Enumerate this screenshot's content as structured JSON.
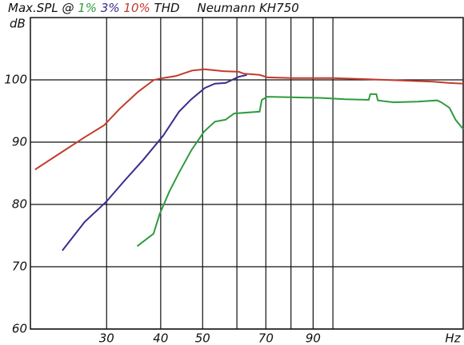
{
  "chart_data": {
    "type": "line",
    "title": "Max.SPL @",
    "title_suffix": "THD",
    "subtitle": "Neumann KH750",
    "y_label": "dB",
    "x_label": "Hz",
    "xscale": "log",
    "grid": true,
    "xlim": [
      20,
      200
    ],
    "ylim": [
      60,
      110
    ],
    "xticks": [
      30,
      40,
      50,
      70,
      90
    ],
    "xgrid": [
      60,
      80,
      100
    ],
    "yticks": [
      60,
      70,
      80,
      90,
      100
    ],
    "series": [
      {
        "name": "1%",
        "color": "#2e9b3e",
        "x": [
          35.3,
          38.5,
          39.8,
          41.9,
          44.1,
          47.1,
          50.4,
          53.4,
          56.5,
          59.1,
          67.7,
          68.5,
          70.6,
          79.6,
          94.2,
          106.6,
          121,
          122,
          126,
          127,
          138,
          157,
          174,
          178,
          186,
          192,
          200
        ],
        "values": [
          73.3,
          75.3,
          78.5,
          82.1,
          85.1,
          88.7,
          91.7,
          93.3,
          93.6,
          94.6,
          94.9,
          96.8,
          97.3,
          97.2,
          97.1,
          96.9,
          96.8,
          97.7,
          97.7,
          96.7,
          96.4,
          96.5,
          96.7,
          96.4,
          95.5,
          93.6,
          92.1
        ]
      },
      {
        "name": "3%",
        "color": "#3d2b8c",
        "x": [
          23.7,
          26.7,
          30,
          32.8,
          36.5,
          40.5,
          44.1,
          47.1,
          50.6,
          53.4,
          56.5,
          60.6,
          63.3
        ],
        "values": [
          72.6,
          77.2,
          80.5,
          83.6,
          87.2,
          91.0,
          94.9,
          96.9,
          98.7,
          99.4,
          99.5,
          100.5,
          100.8
        ]
      },
      {
        "name": "10%",
        "color": "#c23b2c",
        "x": [
          20.5,
          23.4,
          26.7,
          29.6,
          32.2,
          35.5,
          38.6,
          40.5,
          43.3,
          47.3,
          50.6,
          55.8,
          60.6,
          62.2,
          67.7,
          70.6,
          80.7,
          90,
          100,
          121,
          144,
          170,
          186,
          200
        ],
        "values": [
          85.6,
          88.2,
          90.8,
          92.7,
          95.4,
          98.1,
          100,
          100.3,
          100.6,
          101.5,
          101.7,
          101.4,
          101.3,
          101.0,
          100.8,
          100.4,
          100.3,
          100.3,
          100.3,
          100.1,
          99.9,
          99.7,
          99.5,
          99.4
        ]
      }
    ]
  }
}
